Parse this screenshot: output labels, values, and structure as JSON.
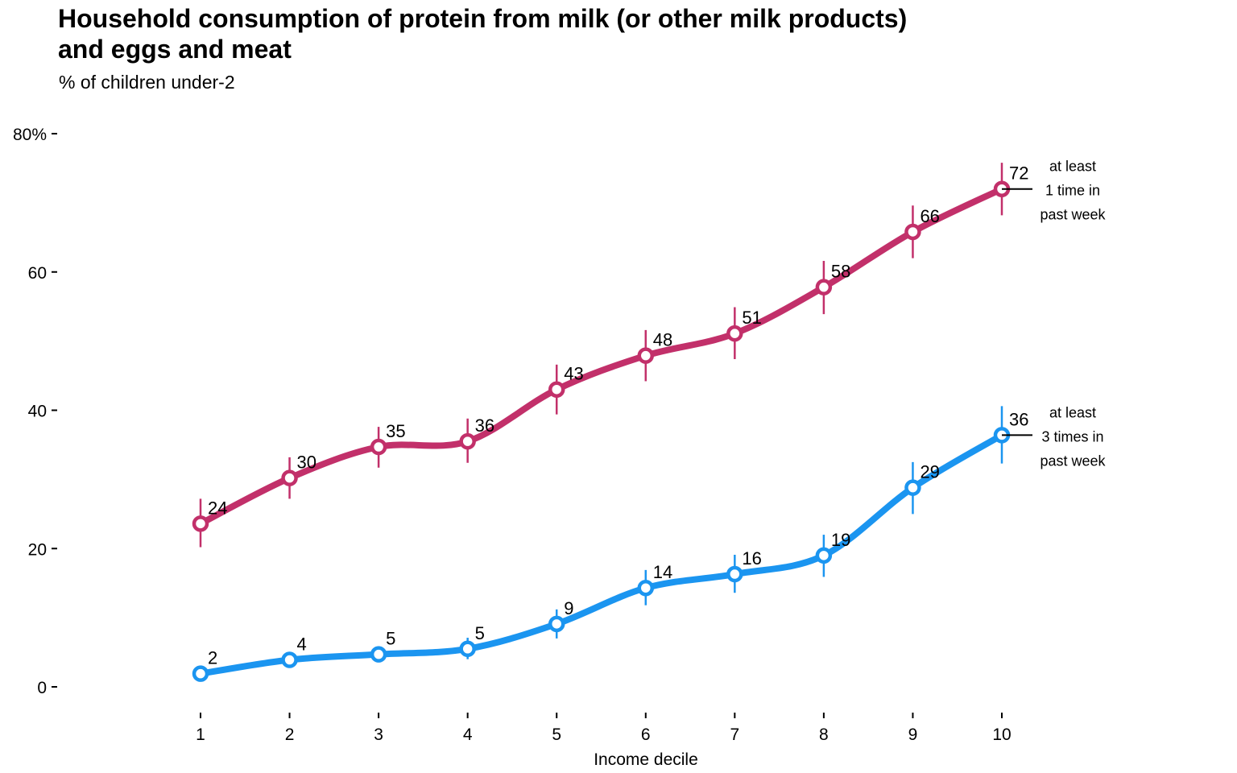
{
  "chart_data": {
    "type": "line",
    "title_line1": "Household consumption of protein from milk (or other milk products)",
    "title_line2": "and eggs and meat",
    "subtitle": "% of children under-2",
    "xlabel": "Income decile",
    "ylabel": "",
    "x": [
      1,
      2,
      3,
      4,
      5,
      6,
      7,
      8,
      9,
      10
    ],
    "xlim": [
      0,
      11
    ],
    "ylim": [
      0,
      80
    ],
    "yticks": [
      0,
      20,
      40,
      60,
      80
    ],
    "ytick_labels": [
      "0",
      "20",
      "40",
      "60",
      "80%"
    ],
    "grid": false,
    "series": [
      {
        "annotation": [
          "at least",
          "1 time in",
          "past week"
        ],
        "color": "#C2306A",
        "values": [
          23.6,
          30.2,
          34.7,
          35.5,
          43.0,
          47.9,
          51.1,
          57.8,
          65.8,
          72.0
        ],
        "labels": [
          "24",
          "30",
          "35",
          "36",
          "43",
          "48",
          "51",
          "58",
          "66",
          "72"
        ],
        "ci_low": [
          20.2,
          27.2,
          31.7,
          32.4,
          39.4,
          44.2,
          47.4,
          53.9,
          62.0,
          68.2
        ],
        "ci_high": [
          27.2,
          33.2,
          37.6,
          38.8,
          46.6,
          51.6,
          54.9,
          61.6,
          69.6,
          75.8
        ]
      },
      {
        "annotation": [
          "at least",
          "3 times in",
          "past week"
        ],
        "color": "#1B95F0",
        "values": [
          1.9,
          3.9,
          4.7,
          5.5,
          9.1,
          14.3,
          16.3,
          19.0,
          28.8,
          36.4
        ],
        "labels": [
          "2",
          "4",
          "5",
          "5",
          "9",
          "14",
          "16",
          "19",
          "29",
          "36"
        ],
        "ci_low": [
          1.2,
          3.0,
          3.6,
          4.0,
          7.0,
          11.8,
          13.6,
          15.9,
          25.0,
          32.3
        ],
        "ci_high": [
          2.6,
          4.8,
          5.8,
          7.1,
          11.2,
          16.9,
          19.1,
          22.0,
          32.5,
          40.6
        ]
      }
    ]
  }
}
